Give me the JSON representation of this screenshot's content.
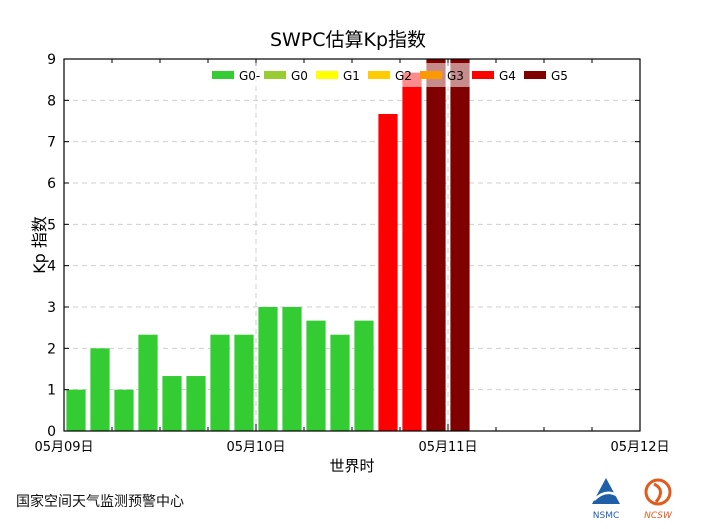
{
  "chart_data": {
    "type": "bar",
    "title": "SWPC估算Kp指数",
    "xlabel": "世界时",
    "ylabel": "Kp 指数",
    "ylim": [
      0,
      9
    ],
    "yticks": [
      0,
      1,
      2,
      3,
      4,
      5,
      6,
      7,
      8,
      9
    ],
    "xlim_days": [
      0,
      3
    ],
    "xticks": [
      {
        "day": 0,
        "label": "05月09日"
      },
      {
        "day": 1,
        "label": "05月10日"
      },
      {
        "day": 2,
        "label": "05月11日"
      },
      {
        "day": 3,
        "label": "05月12日"
      }
    ],
    "bar_hours": 3,
    "grid": true,
    "legend_position": "top-right",
    "legend": [
      {
        "label": "G0-",
        "color": "#33cc33"
      },
      {
        "label": "G0",
        "color": "#99cc33"
      },
      {
        "label": "G1",
        "color": "#ffff00"
      },
      {
        "label": "G2",
        "color": "#ffcc00"
      },
      {
        "label": "G3",
        "color": "#ff9900"
      },
      {
        "label": "G4",
        "color": "#ff0000"
      },
      {
        "label": "G5",
        "color": "#800000"
      }
    ],
    "bars": [
      {
        "start_hour": 0,
        "kp": 1.0,
        "color": "#33cc33"
      },
      {
        "start_hour": 3,
        "kp": 2.0,
        "color": "#33cc33"
      },
      {
        "start_hour": 6,
        "kp": 1.0,
        "color": "#33cc33"
      },
      {
        "start_hour": 9,
        "kp": 2.33,
        "color": "#33cc33"
      },
      {
        "start_hour": 12,
        "kp": 1.33,
        "color": "#33cc33"
      },
      {
        "start_hour": 15,
        "kp": 1.33,
        "color": "#33cc33"
      },
      {
        "start_hour": 18,
        "kp": 2.33,
        "color": "#33cc33"
      },
      {
        "start_hour": 21,
        "kp": 2.33,
        "color": "#33cc33"
      },
      {
        "start_hour": 24,
        "kp": 3.0,
        "color": "#33cc33"
      },
      {
        "start_hour": 27,
        "kp": 3.0,
        "color": "#33cc33"
      },
      {
        "start_hour": 30,
        "kp": 2.67,
        "color": "#33cc33"
      },
      {
        "start_hour": 33,
        "kp": 2.33,
        "color": "#33cc33"
      },
      {
        "start_hour": 36,
        "kp": 2.67,
        "color": "#33cc33"
      },
      {
        "start_hour": 39,
        "kp": 7.67,
        "color": "#ff0000"
      },
      {
        "start_hour": 42,
        "kp": 8.67,
        "color": "#ff0000"
      },
      {
        "start_hour": 45,
        "kp": 9.0,
        "color": "#800000"
      },
      {
        "start_hour": 48,
        "kp": 9.0,
        "color": "#800000"
      }
    ]
  },
  "footer": {
    "agency": "国家空间天气监测预警中心",
    "logo_left": "NSMC",
    "logo_right": "NCSW",
    "logo_colors": {
      "nsmc": "#1f5fa8",
      "ncsw": "#e25b1c"
    }
  }
}
